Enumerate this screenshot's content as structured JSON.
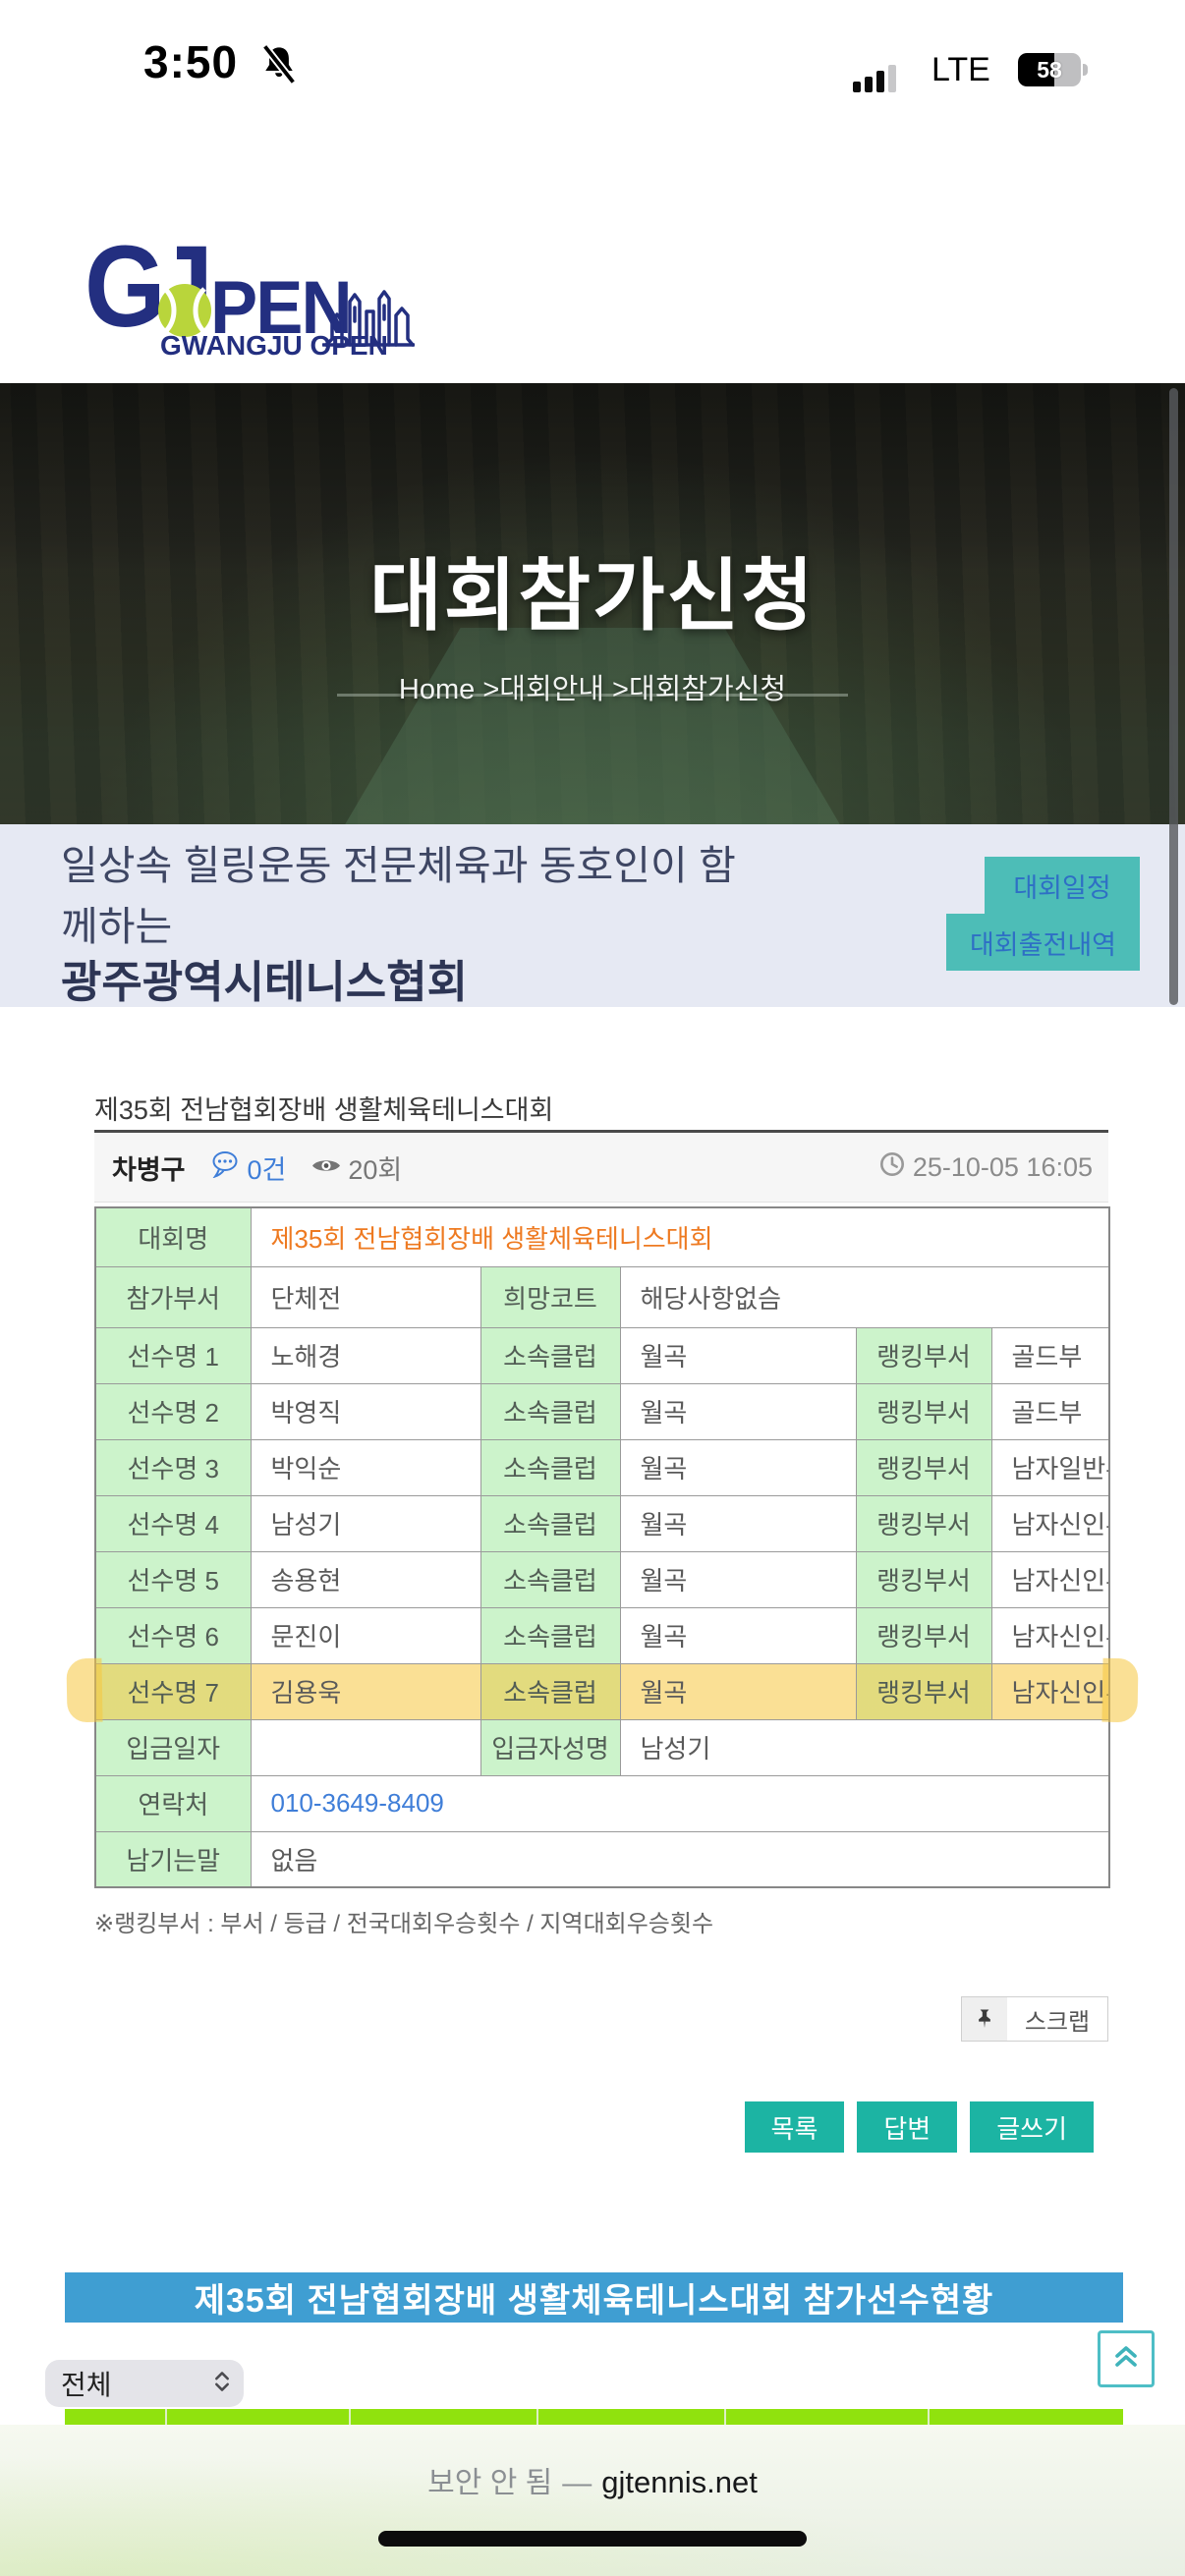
{
  "status_bar": {
    "time": "3:50",
    "network": "LTE",
    "battery_percent": "58"
  },
  "logo": {
    "g": "G",
    "j": "J",
    "pen": "PEN",
    "subtitle": "GWANGJU OPEN"
  },
  "hero": {
    "title": "대회참가신청",
    "breadcrumb": "Home >대회안내 >대회참가신청"
  },
  "intro": {
    "line1": "일상속 힐링운동 전문체육과 동호인이 함",
    "line2": "께하는",
    "org": "광주광역시테니스협회",
    "schedule_button": "대회일정",
    "history_button": "대회출전내역"
  },
  "post": {
    "title": "제35회 전남협회장배 생활체육테니스대회",
    "author": "차병구",
    "comments": "0건",
    "views": "20회",
    "datetime": "25-10-05 16:05"
  },
  "entry_table": {
    "rows": [
      {
        "cells": [
          {
            "k": "h",
            "v": "대회명"
          },
          {
            "k": "d",
            "v": "제35회 전남협회장배 생활체육테니스대회",
            "s": 5,
            "c": "orange"
          }
        ]
      },
      {
        "cells": [
          {
            "k": "h",
            "v": "참가부서"
          },
          {
            "k": "d",
            "v": "단체전"
          },
          {
            "k": "h",
            "v": "희망코트"
          },
          {
            "k": "d",
            "v": "해당사항없슴",
            "s": 3
          }
        ]
      },
      {
        "cells": [
          {
            "k": "h",
            "v": "선수명 1"
          },
          {
            "k": "d",
            "v": "노해경"
          },
          {
            "k": "h",
            "v": "소속클럽"
          },
          {
            "k": "d",
            "v": "월곡"
          },
          {
            "k": "h",
            "v": "랭킹부서"
          },
          {
            "k": "d",
            "v": "골드부"
          }
        ]
      },
      {
        "cells": [
          {
            "k": "h",
            "v": "선수명 2"
          },
          {
            "k": "d",
            "v": "박영직"
          },
          {
            "k": "h",
            "v": "소속클럽"
          },
          {
            "k": "d",
            "v": "월곡"
          },
          {
            "k": "h",
            "v": "랭킹부서"
          },
          {
            "k": "d",
            "v": "골드부"
          }
        ]
      },
      {
        "cells": [
          {
            "k": "h",
            "v": "선수명 3"
          },
          {
            "k": "d",
            "v": "박익순"
          },
          {
            "k": "h",
            "v": "소속클럽"
          },
          {
            "k": "d",
            "v": "월곡"
          },
          {
            "k": "h",
            "v": "랭킹부서"
          },
          {
            "k": "d",
            "v": "남자일반부"
          }
        ]
      },
      {
        "cells": [
          {
            "k": "h",
            "v": "선수명 4"
          },
          {
            "k": "d",
            "v": "남성기"
          },
          {
            "k": "h",
            "v": "소속클럽"
          },
          {
            "k": "d",
            "v": "월곡"
          },
          {
            "k": "h",
            "v": "랭킹부서"
          },
          {
            "k": "d",
            "v": "남자신인부"
          }
        ]
      },
      {
        "cells": [
          {
            "k": "h",
            "v": "선수명 5"
          },
          {
            "k": "d",
            "v": "송용현"
          },
          {
            "k": "h",
            "v": "소속클럽"
          },
          {
            "k": "d",
            "v": "월곡"
          },
          {
            "k": "h",
            "v": "랭킹부서"
          },
          {
            "k": "d",
            "v": "남자신인부"
          }
        ]
      },
      {
        "cells": [
          {
            "k": "h",
            "v": "선수명 6"
          },
          {
            "k": "d",
            "v": "문진이"
          },
          {
            "k": "h",
            "v": "소속클럽"
          },
          {
            "k": "d",
            "v": "월곡"
          },
          {
            "k": "h",
            "v": "랭킹부서"
          },
          {
            "k": "d",
            "v": "남자신인부"
          }
        ]
      },
      {
        "hl": true,
        "cells": [
          {
            "k": "h",
            "v": "선수명 7"
          },
          {
            "k": "d",
            "v": "김용욱"
          },
          {
            "k": "h",
            "v": "소속클럽"
          },
          {
            "k": "d",
            "v": "월곡"
          },
          {
            "k": "h",
            "v": "랭킹부서"
          },
          {
            "k": "d",
            "v": "남자신인부"
          }
        ]
      },
      {
        "cells": [
          {
            "k": "h",
            "v": "입금일자"
          },
          {
            "k": "d",
            "v": ""
          },
          {
            "k": "h",
            "v": "입금자성명"
          },
          {
            "k": "d",
            "v": "남성기",
            "s": 3
          }
        ]
      },
      {
        "cells": [
          {
            "k": "h",
            "v": "연락처"
          },
          {
            "k": "d",
            "v": "010-3649-8409",
            "s": 5,
            "c": "link"
          }
        ]
      },
      {
        "cells": [
          {
            "k": "h",
            "v": "남기는말"
          },
          {
            "k": "d",
            "v": "없음",
            "s": 5
          }
        ]
      }
    ]
  },
  "footnote": "※랭킹부서 : 부서 / 등급 / 전국대회우승횟수 / 지역대회우승횟수",
  "scrap_button": "스크랩",
  "actions": {
    "list": "목록",
    "reply": "답변",
    "write": "글쓰기"
  },
  "roster": {
    "title": "제35회 전남협회장배 생활체육테니스대회 참가선수현황",
    "filter_value": "전체"
  },
  "browser_bar": {
    "security_text": "보안 안 됨",
    "separator": "—",
    "domain": "gjtennis.net"
  },
  "colors": {
    "teal_accent": "#1cb4a3",
    "side_button_teal": "#4dbdb7",
    "side_button_text_blue": "#2e6fc5",
    "table_header_green": "#ccf3cb",
    "highlight_yellow": "#f5c73e",
    "title_orange": "#ee7a21",
    "link_blue": "#3f7ed8",
    "roster_header_blue": "#3f9ed2",
    "roster_row_green": "#90e20e",
    "logo_navy": "#232f80",
    "intro_background": "#e6e9f3"
  }
}
